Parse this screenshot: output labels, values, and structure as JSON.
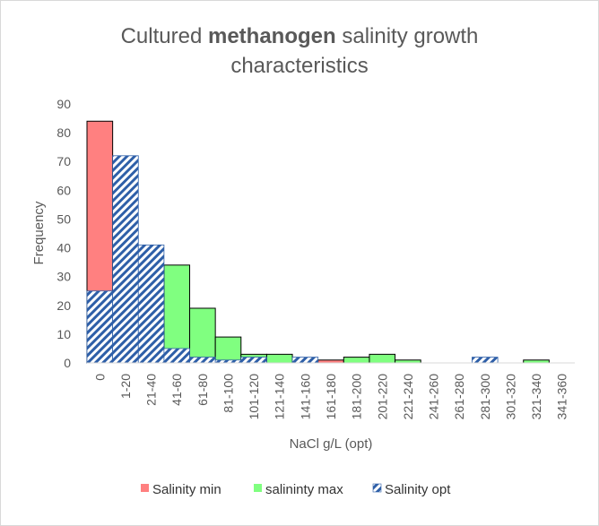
{
  "chart_data": {
    "type": "bar",
    "title_prefix": "Cultured ",
    "title_bold": "methanogen",
    "title_suffix": " salinity growth",
    "title_line2": "characteristics",
    "xlabel": "NaCl g/L (opt)",
    "ylabel": "Frequency",
    "ylim": [
      0,
      90
    ],
    "yticks": [
      0,
      10,
      20,
      30,
      40,
      50,
      60,
      70,
      80,
      90
    ],
    "grid": false,
    "legend_position": "bottom",
    "categories": [
      "0",
      "1-20",
      "21-40",
      "41-60",
      "61-80",
      "81-100",
      "101-120",
      "121-140",
      "141-160",
      "161-180",
      "181-200",
      "201-220",
      "221-240",
      "241-260",
      "261-280",
      "281-300",
      "301-320",
      "321-340",
      "341-360"
    ],
    "series": [
      {
        "name": "Salinity min",
        "color": "#ff8080",
        "pattern": "solid",
        "values": [
          84,
          0,
          0,
          0,
          0,
          0,
          0,
          0,
          0,
          1,
          0,
          0,
          0,
          0,
          0,
          0,
          0,
          0,
          0
        ]
      },
      {
        "name": "salininty max",
        "color": "#80ff80",
        "pattern": "solid",
        "values": [
          0,
          0,
          0,
          34,
          19,
          9,
          3,
          3,
          0,
          0,
          2,
          3,
          1,
          0,
          0,
          0,
          0,
          1,
          0
        ]
      },
      {
        "name": "Salinity opt",
        "color": "#2e5fa8",
        "pattern": "diagonal-hatch",
        "values": [
          25,
          72,
          41,
          5,
          2,
          1,
          2,
          0,
          2,
          0,
          0,
          0,
          0,
          0,
          0,
          2,
          0,
          0,
          0
        ]
      }
    ]
  }
}
